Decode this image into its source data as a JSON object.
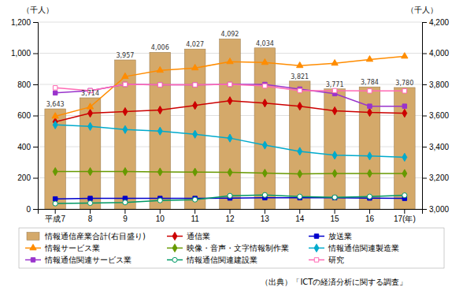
{
  "chart_data": {
    "type": "bar",
    "categories": [
      "平成7",
      "8",
      "9",
      "10",
      "11",
      "12",
      "13",
      "14",
      "15",
      "16",
      "17(年)"
    ],
    "y_label": "（千人）",
    "y2_label": "（千人）",
    "ylim": [
      0,
      1200
    ],
    "yticks": [
      0,
      200,
      400,
      600,
      800,
      {
        "value": 1000,
        "label": "1,000"
      },
      {
        "value": 1200,
        "label": "1,200"
      }
    ],
    "y2lim": [
      3000,
      4200
    ],
    "y2ticks": [
      {
        "value": 3000,
        "label": "3,000"
      },
      {
        "value": 3200,
        "label": "3,200"
      },
      {
        "value": 3400,
        "label": "3,400"
      },
      {
        "value": 3600,
        "label": "3,600"
      },
      {
        "value": 3800,
        "label": "3,800"
      },
      {
        "value": 4000,
        "label": "4,000"
      },
      {
        "value": 4200,
        "label": "4,200"
      }
    ],
    "grid": true,
    "legend": "bottom",
    "annotations": [
      "（出典）「ICTの経済分析に関する調査」"
    ],
    "series": [
      {
        "name": "情報通信産業合計(右目盛り)",
        "type": "bar",
        "axis": "y2",
        "color": "#D4A96A",
        "values": [
          3643,
          3714,
          3957,
          4006,
          4027,
          4092,
          4034,
          3821,
          3771,
          3784,
          3780
        ],
        "data_labels": true,
        "value_labels": [
          "3,643",
          "3,714",
          "3,957",
          "4,006",
          "4,027",
          "4,092",
          "4,034",
          "3,821",
          "3,771",
          "3,784",
          "3,780"
        ]
      },
      {
        "name": "通信業",
        "type": "line",
        "color": "#CC0000",
        "marker": "diamond",
        "values": [
          560,
          615,
          625,
          635,
          665,
          695,
          680,
          660,
          630,
          620,
          615
        ]
      },
      {
        "name": "放送業",
        "type": "line",
        "color": "#0000CC",
        "marker": "square",
        "values": [
          65,
          68,
          68,
          68,
          68,
          70,
          72,
          72,
          72,
          70,
          68
        ]
      },
      {
        "name": "情報サービス業",
        "type": "line",
        "color": "#FF8C00",
        "marker": "triangle",
        "values": [
          595,
          655,
          850,
          890,
          905,
          945,
          940,
          920,
          935,
          960,
          980
        ]
      },
      {
        "name": "映像・音声・文字情報制作業",
        "type": "line",
        "color": "#669900",
        "marker": "diamond",
        "values": [
          240,
          240,
          240,
          238,
          237,
          235,
          230,
          225,
          228,
          228,
          228
        ]
      },
      {
        "name": "情報通信関連製造業",
        "type": "line",
        "color": "#00AACC",
        "marker": "diamond",
        "values": [
          540,
          530,
          510,
          500,
          480,
          455,
          410,
          370,
          345,
          340,
          332
        ]
      },
      {
        "name": "情報通信関連サービス業",
        "type": "line",
        "color": "#9933CC",
        "marker": "square",
        "values": [
          745,
          760,
          800,
          797,
          797,
          800,
          800,
          770,
          740,
          660,
          660
        ]
      },
      {
        "name": "情報通信関連建設業",
        "type": "line",
        "color": "#009966",
        "marker": "circle-open",
        "values": [
          35,
          38,
          42,
          55,
          60,
          85,
          90,
          80,
          75,
          80,
          88
        ]
      },
      {
        "name": "研究",
        "type": "line",
        "color": "#FF69B4",
        "marker": "square-open",
        "values": [
          778,
          760,
          800,
          797,
          797,
          800,
          790,
          760,
          760,
          758,
          758
        ]
      }
    ]
  }
}
